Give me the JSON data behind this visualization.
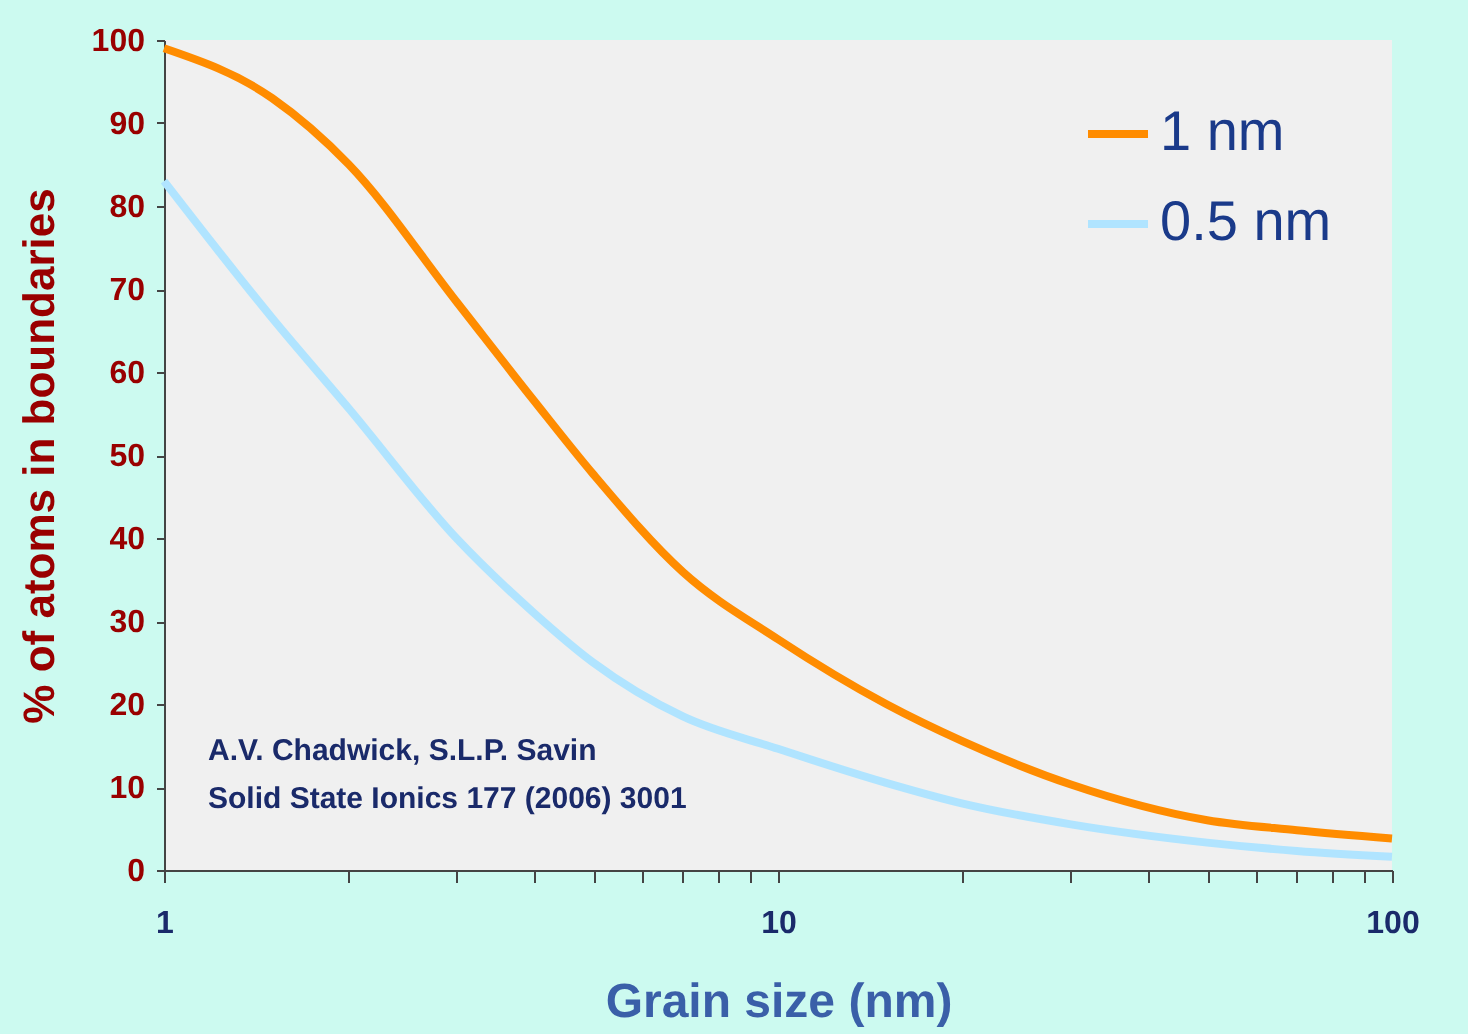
{
  "chart_data": {
    "type": "line",
    "xlabel": "Grain size (nm)",
    "ylabel": "% of atoms in boundaries",
    "log": "x",
    "xlim": [
      1,
      100
    ],
    "ylim": [
      0,
      100
    ],
    "xticks": [
      1,
      {
        "value": 2,
        "label": null
      },
      {
        "value": 3,
        "label": null
      },
      {
        "value": 4,
        "label": null
      },
      {
        "value": 5,
        "label": null
      },
      {
        "value": 6,
        "label": null
      },
      {
        "value": 7,
        "label": null
      },
      {
        "value": 8,
        "label": null
      },
      {
        "value": 9,
        "label": null
      },
      10,
      {
        "value": 20,
        "label": null
      },
      {
        "value": 30,
        "label": null
      },
      {
        "value": 40,
        "label": null
      },
      {
        "value": 50,
        "label": null
      },
      {
        "value": 60,
        "label": null
      },
      {
        "value": 70,
        "label": null
      },
      {
        "value": 80,
        "label": null
      },
      {
        "value": 90,
        "label": null
      },
      100
    ],
    "yticks": [
      0,
      10,
      20,
      30,
      40,
      50,
      60,
      70,
      80,
      90,
      100
    ],
    "grid": false,
    "legend": "top right",
    "marker": "none",
    "line_style": "solid",
    "x": [
      1,
      1.5,
      2,
      3,
      4,
      5,
      7,
      10,
      15,
      20,
      30,
      50,
      70,
      100
    ],
    "series": [
      {
        "name": "1 nm",
        "color": "#ff8c00",
        "values": [
          99,
          93,
          85,
          68.4,
          56.6,
          47.7,
          35.9,
          27.8,
          20,
          15.5,
          10.3,
          6,
          4.8,
          3.8
        ]
      },
      {
        "name": "0.5 nm",
        "color": "#b0e4ff",
        "values": [
          83,
          66.5,
          55.6,
          39.9,
          31,
          25,
          18.5,
          14.6,
          10.5,
          8,
          5.5,
          3.3,
          2.3,
          1.6
        ]
      }
    ],
    "annotations": [
      "A.V. Chadwick, S.L.P. Savin",
      "Solid State Ionics 177 (2006) 3001"
    ]
  }
}
